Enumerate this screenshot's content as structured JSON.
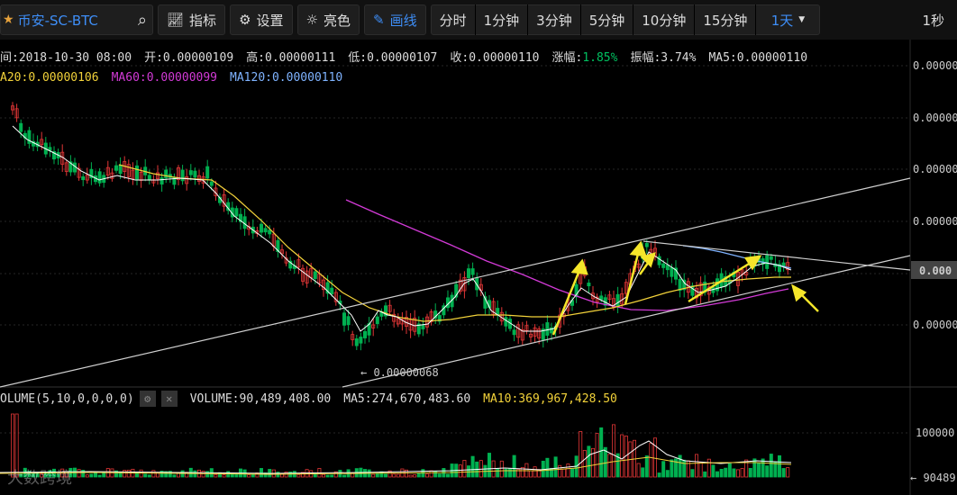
{
  "toolbar": {
    "symbol": "币安-SC-BTC",
    "indicators_label": "指标",
    "settings_label": "设置",
    "theme_label": "亮色",
    "draw_label": "画线",
    "periods": [
      "分时",
      "1分钟",
      "3分钟",
      "5分钟",
      "10分钟",
      "15分钟"
    ],
    "period_selected": "1天",
    "right_label": "1秒"
  },
  "info": {
    "time_label": "间:",
    "time": "2018-10-30 08:00",
    "open_label": "开:",
    "open": "0.00000109",
    "high_label": "高:",
    "high": "0.00000111",
    "low_label": "低:",
    "low": "0.00000107",
    "close_label": "收:",
    "close": "0.00000110",
    "change_label": "涨幅:",
    "change": "1.85%",
    "amp_label": "振幅:",
    "amp": "3.74%",
    "ma5_label": "MA5:",
    "ma5": "0.00000110",
    "ma20_label": "A20:",
    "ma20": "0.00000106",
    "ma60_label": "MA60:",
    "ma60": "0.00000099",
    "ma120_label": "MA120:",
    "ma120": "0.00000110"
  },
  "price_axis": {
    "labels": [
      "0.00000",
      "0.00000",
      "0.00000",
      "0.00000",
      "0.00000"
    ],
    "current": "0.000",
    "low_marker": "← 0.00000068"
  },
  "volume": {
    "title": "OLUME(5,10,0,0,0,0)",
    "volume_label": "VOLUME:",
    "volume": "90,489,408.00",
    "ma5_label": "MA5:",
    "ma5": "274,670,483.60",
    "ma10_label": "MA10:",
    "ma10": "369,967,428.50",
    "axis_label": "100000",
    "current": "← 90489"
  },
  "watermark": "大数跨境",
  "colors": {
    "up": "#e23636",
    "down": "#00b050",
    "ma5": "#ffffff",
    "ma20": "#f2d23a",
    "ma60": "#d23ad6",
    "ma120": "#7fb3ff",
    "accent": "#3e8ef7",
    "arrow": "#f5e62a"
  }
}
